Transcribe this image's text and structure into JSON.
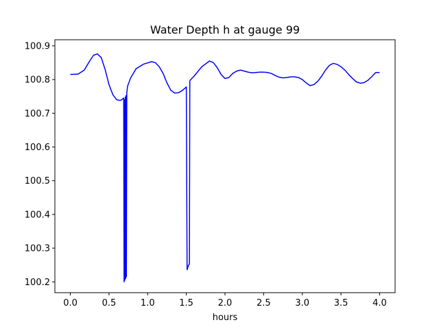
{
  "chart_data": {
    "type": "line",
    "title": "Water Depth h at gauge 99",
    "xlabel": "hours",
    "ylabel": "",
    "xlim": [
      -0.2,
      4.2
    ],
    "ylim": [
      100.168,
      100.918
    ],
    "x_ticks": [
      0.0,
      0.5,
      1.0,
      1.5,
      2.0,
      2.5,
      3.0,
      3.5,
      4.0
    ],
    "x_tick_labels": [
      "0.0",
      "0.5",
      "1.0",
      "1.5",
      "2.0",
      "2.5",
      "3.0",
      "3.5",
      "4.0"
    ],
    "y_ticks": [
      100.2,
      100.3,
      100.4,
      100.5,
      100.6,
      100.7,
      100.8,
      100.9
    ],
    "y_tick_labels": [
      "100.2",
      "100.3",
      "100.4",
      "100.5",
      "100.6",
      "100.7",
      "100.8",
      "100.9"
    ],
    "grid": false,
    "legend": "none",
    "series": [
      {
        "color": "#0000ff",
        "x": [
          0.0,
          0.1,
          0.18,
          0.25,
          0.3,
          0.35,
          0.4,
          0.45,
          0.5,
          0.55,
          0.6,
          0.65,
          0.69,
          0.695,
          0.7,
          0.705,
          0.71,
          0.715,
          0.72,
          0.725,
          0.73,
          0.74,
          0.78,
          0.85,
          0.95,
          1.05,
          1.1,
          1.15,
          1.2,
          1.25,
          1.3,
          1.35,
          1.4,
          1.45,
          1.5,
          1.51,
          1.515,
          1.53,
          1.54,
          1.545,
          1.55,
          1.6,
          1.7,
          1.8,
          1.85,
          1.9,
          1.95,
          2.0,
          2.05,
          2.1,
          2.15,
          2.2,
          2.25,
          2.3,
          2.35,
          2.4,
          2.45,
          2.5,
          2.55,
          2.6,
          2.65,
          2.7,
          2.75,
          2.8,
          2.85,
          2.9,
          2.95,
          3.0,
          3.05,
          3.1,
          3.15,
          3.2,
          3.25,
          3.3,
          3.35,
          3.4,
          3.45,
          3.5,
          3.55,
          3.6,
          3.65,
          3.7,
          3.75,
          3.8,
          3.85,
          3.9,
          3.95,
          4.0
        ],
        "y": [
          100.815,
          100.816,
          100.828,
          100.855,
          100.872,
          100.876,
          100.865,
          100.83,
          100.785,
          100.755,
          100.74,
          100.738,
          100.745,
          100.2,
          100.74,
          100.205,
          100.748,
          100.21,
          100.752,
          100.215,
          100.76,
          100.78,
          100.805,
          100.832,
          100.846,
          100.853,
          100.85,
          100.838,
          100.818,
          100.79,
          100.768,
          100.76,
          100.761,
          100.768,
          100.778,
          100.236,
          100.24,
          100.25,
          100.253,
          100.795,
          100.798,
          100.81,
          100.838,
          100.855,
          100.85,
          100.835,
          100.815,
          100.803,
          100.806,
          100.818,
          100.825,
          100.828,
          100.825,
          100.822,
          100.82,
          100.821,
          100.822,
          100.822,
          100.821,
          100.818,
          100.812,
          100.807,
          100.805,
          100.806,
          100.808,
          100.808,
          100.806,
          100.8,
          100.79,
          100.782,
          100.785,
          100.795,
          100.81,
          100.828,
          100.842,
          100.848,
          100.845,
          100.838,
          100.828,
          100.815,
          100.803,
          100.793,
          100.789,
          100.791,
          100.798,
          100.809,
          100.821,
          100.821
        ]
      }
    ]
  }
}
